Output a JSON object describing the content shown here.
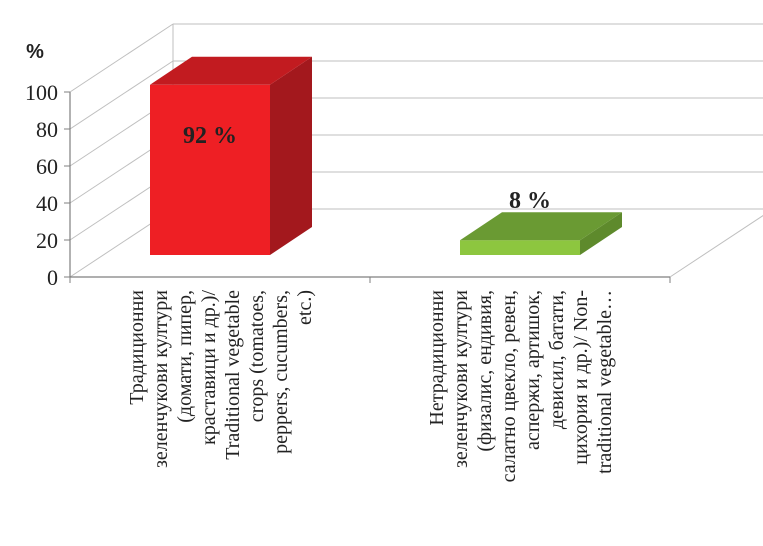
{
  "chart_data": {
    "type": "bar",
    "style": "3d-column",
    "unit_label": "%",
    "categories": [
      [
        "Традиционни",
        "зеленчукови култури",
        "(домати, пипер,",
        "краставици и др.)/",
        "Traditional vegetable",
        "crops (tomatoes,",
        "peppers, cucumbers,",
        "etc.)"
      ],
      [
        "Нетрадиционни",
        "зеленчукови култури",
        "(физалис, ендивия,",
        "салатно цвекло, ревен,",
        "аспержи, артишок,",
        "девисил, батати,",
        "цихория и др.)/ Non-",
        "traditional vegetable…"
      ]
    ],
    "values": [
      92,
      8
    ],
    "data_labels": [
      "92 %",
      "8 %"
    ],
    "ylim": [
      0,
      100
    ],
    "yticks": [
      "0",
      "20",
      "40",
      "60",
      "80",
      "100"
    ],
    "grid": true,
    "colors": {
      "bar1_front": "#ee1f24",
      "bar1_side": "#a3181d",
      "bar1_top": "#c21b20",
      "bar2_front": "#8dc63f",
      "bar2_side": "#5e8a2c",
      "bar2_top": "#6a9a33",
      "grid": "#bfbfbf",
      "axis": "#7f7f7f"
    }
  }
}
